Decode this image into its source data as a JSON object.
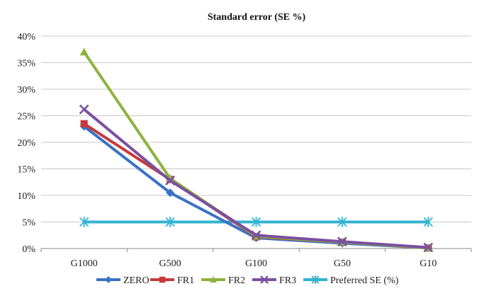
{
  "chart_data": {
    "type": "line",
    "title": "Standard error (SE %)",
    "categories": [
      "G1000",
      "G500",
      "G100",
      "G50",
      "G10"
    ],
    "ylim": [
      0,
      40
    ],
    "yticks": [
      0,
      5,
      10,
      15,
      20,
      25,
      30,
      35,
      40
    ],
    "ytick_suffix": "%",
    "grid": true,
    "legend_position": "bottom",
    "series": [
      {
        "name": "ZERO",
        "values": [
          23.0,
          10.5,
          2.0,
          1.0,
          0.1
        ],
        "color": "#3a72c4",
        "marker": "diamond"
      },
      {
        "name": "FR1",
        "values": [
          23.5,
          13.0,
          2.2,
          1.2,
          0.1
        ],
        "color": "#c8393b",
        "marker": "square"
      },
      {
        "name": "FR2",
        "values": [
          37.0,
          13.2,
          2.3,
          1.2,
          0.1
        ],
        "color": "#8db33f",
        "marker": "triangle"
      },
      {
        "name": "FR3",
        "values": [
          26.2,
          12.8,
          2.5,
          1.3,
          0.2
        ],
        "color": "#7a4fa0",
        "marker": "x"
      },
      {
        "name": "Preferred SE (%)",
        "values": [
          5,
          5,
          5,
          5,
          5
        ],
        "color": "#33b2d0",
        "marker": "star"
      }
    ]
  }
}
